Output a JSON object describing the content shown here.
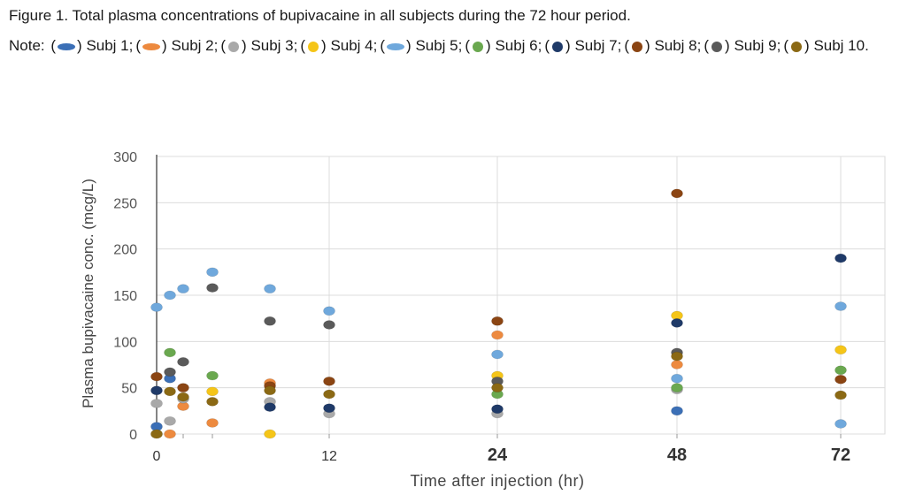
{
  "caption": {
    "figure_label": "Figure 1.",
    "figure_text": "Total plasma concentrations of bupivacaine in all subjects during the 72 hour period.",
    "note_label": "Note:",
    "legend": [
      {
        "text": "Subj 1;",
        "color": "#3B6FB6",
        "shape": "dash"
      },
      {
        "text": "Subj 2;",
        "color": "#ED8A3F",
        "shape": "dash"
      },
      {
        "text": "Subj 3;",
        "color": "#A9A9A9",
        "shape": "dot"
      },
      {
        "text": "Subj 4;",
        "color": "#F5C518",
        "shape": "dot"
      },
      {
        "text": "Subj 5;",
        "color": "#6FA8DC",
        "shape": "dash"
      },
      {
        "text": "Subj 6;",
        "color": "#6AA84F",
        "shape": "dot"
      },
      {
        "text": "Subj 7;",
        "color": "#1F3A68",
        "shape": "dot"
      },
      {
        "text": "Subj 8;",
        "color": "#8B4513",
        "shape": "dot"
      },
      {
        "text": "Subj 9;",
        "color": "#5A5A5A",
        "shape": "dot"
      },
      {
        "text": "Subj 10.",
        "color": "#8B6914",
        "shape": "dot"
      }
    ]
  },
  "chart_data": {
    "type": "scatter",
    "xlabel": "Time after injection (hr)",
    "ylabel": "Plasma bupivacaine conc. (mcg/L)",
    "ylim": [
      0,
      300
    ],
    "yticks": [
      0,
      50,
      100,
      150,
      200,
      250,
      300
    ],
    "x_categories": [
      "0",
      "",
      "",
      "",
      "",
      "12",
      "24",
      "48",
      "72"
    ],
    "grid": true,
    "series": [
      {
        "name": "Subj 1",
        "color": "#3B6FB6",
        "points": [
          [
            0,
            8
          ],
          [
            1,
            60
          ],
          [
            7,
            25
          ]
        ]
      },
      {
        "name": "Subj 2",
        "color": "#ED8A3F",
        "points": [
          [
            1,
            0
          ],
          [
            2,
            30
          ],
          [
            3,
            12
          ],
          [
            4,
            55
          ],
          [
            6,
            107
          ],
          [
            7,
            75
          ]
        ]
      },
      {
        "name": "Subj 3",
        "color": "#A9A9A9",
        "points": [
          [
            0,
            33
          ],
          [
            1,
            14
          ],
          [
            2,
            38
          ],
          [
            4,
            35
          ],
          [
            5,
            22
          ],
          [
            6,
            22
          ],
          [
            7,
            48
          ]
        ]
      },
      {
        "name": "Subj 4",
        "color": "#F5C518",
        "points": [
          [
            0,
            0
          ],
          [
            3,
            46
          ],
          [
            4,
            0
          ],
          [
            6,
            63
          ],
          [
            7,
            128
          ],
          [
            8,
            91
          ]
        ]
      },
      {
        "name": "Subj 5",
        "color": "#6FA8DC",
        "points": [
          [
            0,
            137
          ],
          [
            1,
            150
          ],
          [
            2,
            157
          ],
          [
            3,
            175
          ],
          [
            4,
            157
          ],
          [
            5,
            133
          ],
          [
            6,
            86
          ],
          [
            7,
            60
          ],
          [
            8,
            138
          ],
          [
            8,
            11
          ]
        ]
      },
      {
        "name": "Subj 6",
        "color": "#6AA84F",
        "points": [
          [
            1,
            88
          ],
          [
            3,
            63
          ],
          [
            6,
            43
          ],
          [
            7,
            50
          ],
          [
            8,
            69
          ]
        ]
      },
      {
        "name": "Subj 7",
        "color": "#1F3A68",
        "points": [
          [
            0,
            47
          ],
          [
            4,
            29
          ],
          [
            5,
            28
          ],
          [
            6,
            27
          ],
          [
            7,
            120
          ],
          [
            8,
            190
          ]
        ]
      },
      {
        "name": "Subj 8",
        "color": "#8B4513",
        "points": [
          [
            0,
            62
          ],
          [
            2,
            50
          ],
          [
            4,
            52
          ],
          [
            5,
            57
          ],
          [
            6,
            122
          ],
          [
            7,
            260
          ],
          [
            8,
            59
          ]
        ]
      },
      {
        "name": "Subj 9",
        "color": "#5A5A5A",
        "points": [
          [
            1,
            67
          ],
          [
            2,
            78
          ],
          [
            3,
            158
          ],
          [
            4,
            122
          ],
          [
            5,
            118
          ],
          [
            6,
            57
          ],
          [
            7,
            88
          ]
        ]
      },
      {
        "name": "Subj 10",
        "color": "#8B6914",
        "points": [
          [
            0,
            0
          ],
          [
            1,
            46
          ],
          [
            2,
            40
          ],
          [
            3,
            35
          ],
          [
            4,
            47
          ],
          [
            5,
            43
          ],
          [
            6,
            50
          ],
          [
            7,
            84
          ],
          [
            8,
            42
          ]
        ]
      }
    ]
  }
}
